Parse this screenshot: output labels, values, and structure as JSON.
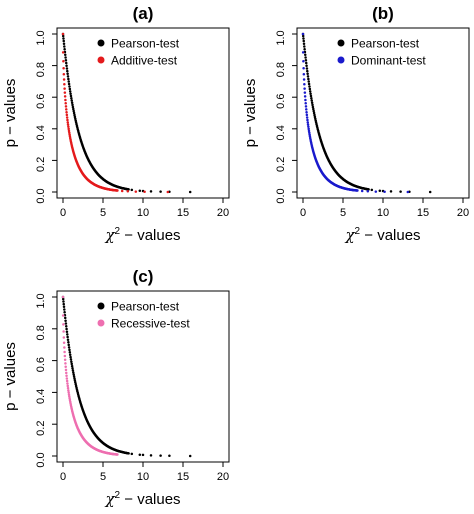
{
  "chart_data": [
    {
      "type": "scatter",
      "title": "(a)",
      "xlabel_symbol": "χ",
      "xlabel_sup": "2",
      "xlabel_rest": " − values",
      "ylabel": "p − values",
      "xlim": [
        0,
        20
      ],
      "ylim": [
        0,
        1
      ],
      "xticks": [
        "0",
        "5",
        "10",
        "15",
        "20"
      ],
      "yticks": [
        "0.0",
        "0.2",
        "0.4",
        "0.6",
        "0.8",
        "1.0"
      ],
      "legend_position": "top-right",
      "series": [
        {
          "name": "Pearson-test",
          "color": "#000000",
          "df": 2,
          "x_range": [
            0,
            8.2
          ],
          "outliers_x": [
            8.6,
            9.6,
            10.0,
            11.0,
            12.2,
            13.3,
            15.9
          ]
        },
        {
          "name": "Additive-test",
          "color": "#e41a1c",
          "df": 1,
          "x_range": [
            0,
            6.8
          ],
          "outliers_x": [
            7.4,
            8.1,
            9.1,
            10.2,
            13.1
          ]
        }
      ]
    },
    {
      "type": "scatter",
      "title": "(b)",
      "xlabel_symbol": "χ",
      "xlabel_sup": "2",
      "xlabel_rest": " − values",
      "ylabel": "p − values",
      "xlim": [
        0,
        20
      ],
      "ylim": [
        0,
        1
      ],
      "xticks": [
        "0",
        "5",
        "10",
        "15",
        "20"
      ],
      "yticks": [
        "0.0",
        "0.2",
        "0.4",
        "0.6",
        "0.8",
        "1.0"
      ],
      "legend_position": "top-right",
      "series": [
        {
          "name": "Pearson-test",
          "color": "#000000",
          "df": 2,
          "x_range": [
            0,
            8.2
          ],
          "outliers_x": [
            8.6,
            9.6,
            10.0,
            11.0,
            12.2,
            13.3,
            15.9
          ]
        },
        {
          "name": "Dominant-test",
          "color": "#1a1acc",
          "df": 1,
          "x_range": [
            0,
            6.8
          ],
          "outliers_x": [
            7.4,
            8.1,
            9.1,
            10.2,
            13.1
          ]
        }
      ]
    },
    {
      "type": "scatter",
      "title": "(c)",
      "xlabel_symbol": "χ",
      "xlabel_sup": "2",
      "xlabel_rest": " − values",
      "ylabel": "p − values",
      "xlim": [
        0,
        20
      ],
      "ylim": [
        0,
        1
      ],
      "xticks": [
        "0",
        "5",
        "10",
        "15",
        "20"
      ],
      "yticks": [
        "0.0",
        "0.2",
        "0.4",
        "0.6",
        "0.8",
        "1.0"
      ],
      "legend_position": "top-right",
      "series": [
        {
          "name": "Pearson-test",
          "color": "#000000",
          "df": 2,
          "x_range": [
            0,
            8.2
          ],
          "outliers_x": [
            8.6,
            9.6,
            10.0,
            11.0,
            12.2,
            13.3,
            15.9
          ]
        },
        {
          "name": "Recessive-test",
          "color": "#ee6fb0",
          "df": 1,
          "x_range": [
            0,
            6.8
          ],
          "outliers_x": []
        }
      ]
    }
  ]
}
